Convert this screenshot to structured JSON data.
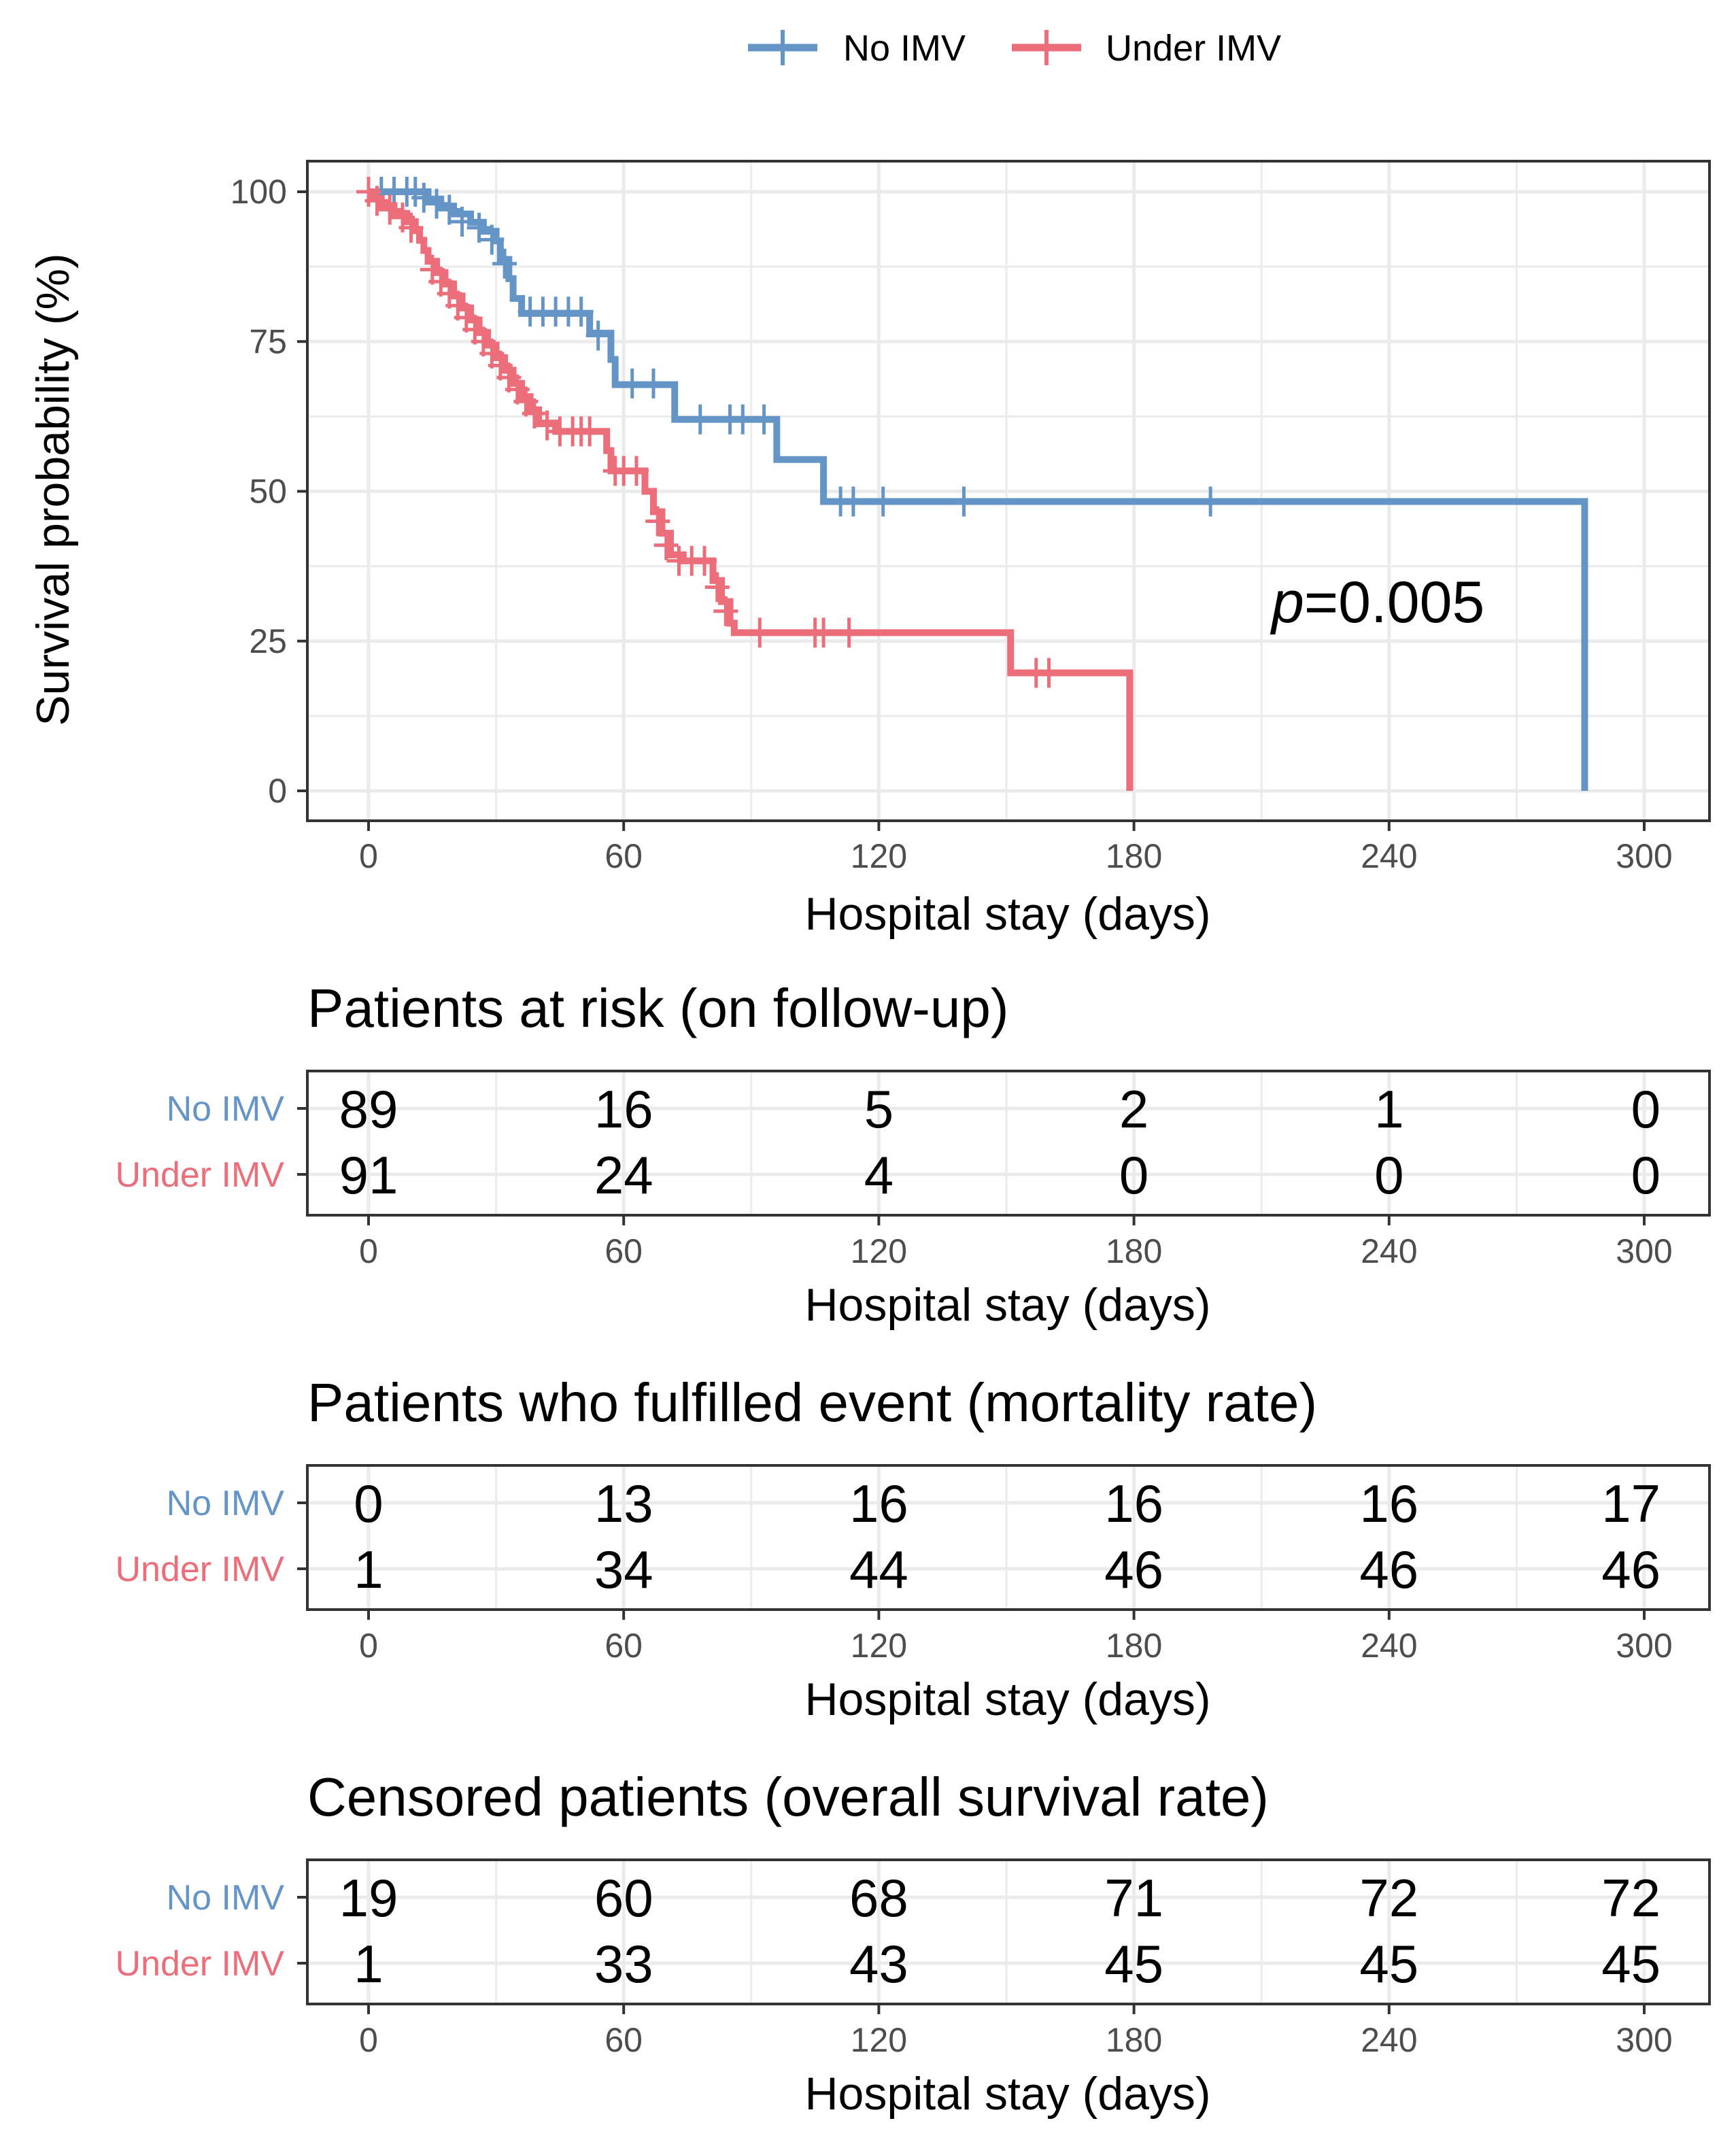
{
  "chart_data": [
    {
      "type": "line",
      "subtype": "kaplan-meier",
      "xlabel": "Hospital stay (days)",
      "ylabel": "Survival probability (%)",
      "xlim": [
        0,
        300
      ],
      "ylim": [
        0,
        100
      ],
      "xticks": [
        "0",
        "60",
        "120",
        "180",
        "240",
        "300"
      ],
      "yticks": [
        "100",
        "75",
        "50",
        "25",
        "0"
      ],
      "grid": true,
      "legend": [
        "No IMV",
        "Under IMV"
      ],
      "legend_position": "top",
      "annotation": {
        "prefix": "p",
        "text": "=0.005"
      },
      "series": [
        {
          "name": "No IMV",
          "color": "#6595c7",
          "steps": [
            [
              0,
              100
            ],
            [
              14,
              98.8
            ],
            [
              17,
              97.6
            ],
            [
              20,
              96.3
            ],
            [
              24,
              94.9
            ],
            [
              27,
              93.4
            ],
            [
              30,
              91.8
            ],
            [
              31,
              88.7
            ],
            [
              33,
              85.5
            ],
            [
              34,
              82.2
            ],
            [
              36,
              79.7
            ],
            [
              52,
              76.4
            ],
            [
              57,
              72.0
            ],
            [
              58,
              67.8
            ],
            [
              71,
              67.8
            ],
            [
              72,
              62.0
            ],
            [
              95,
              62.0
            ],
            [
              96,
              55.3
            ],
            [
              106,
              55.3
            ],
            [
              107,
              48.3
            ],
            [
              286,
              48.3
            ],
            [
              286,
              0
            ]
          ],
          "censored": [
            [
              0,
              100
            ],
            [
              3,
              100
            ],
            [
              6,
              100
            ],
            [
              9,
              100
            ],
            [
              11,
              100
            ],
            [
              13,
              99
            ],
            [
              16,
              98
            ],
            [
              19,
              97
            ],
            [
              22,
              95
            ],
            [
              26,
              94
            ],
            [
              29,
              92
            ],
            [
              32,
              88
            ],
            [
              38,
              80
            ],
            [
              41,
              80
            ],
            [
              44,
              80
            ],
            [
              47,
              80
            ],
            [
              50,
              80
            ],
            [
              54,
              76
            ],
            [
              62,
              68
            ],
            [
              67,
              68
            ],
            [
              78,
              62
            ],
            [
              85,
              62
            ],
            [
              88,
              62
            ],
            [
              93,
              62
            ],
            [
              111,
              48.3
            ],
            [
              114,
              48.3
            ],
            [
              121,
              48.3
            ],
            [
              140,
              48.3
            ],
            [
              198,
              48.3
            ]
          ]
        },
        {
          "name": "Under IMV",
          "color": "#eb6e7a",
          "steps": [
            [
              0,
              100
            ],
            [
              1,
              98.9
            ],
            [
              3,
              97.7
            ],
            [
              6,
              96.4
            ],
            [
              9,
              95.0
            ],
            [
              11,
              93.5
            ],
            [
              12,
              91.9
            ],
            [
              13,
              90.2
            ],
            [
              14,
              88.4
            ],
            [
              16,
              86.5
            ],
            [
              18,
              84.6
            ],
            [
              20,
              82.6
            ],
            [
              22,
              80.6
            ],
            [
              24,
              78.6
            ],
            [
              26,
              76.5
            ],
            [
              28,
              74.4
            ],
            [
              30,
              72.3
            ],
            [
              32,
              70.2
            ],
            [
              34,
              68.0
            ],
            [
              36,
              65.8
            ],
            [
              38,
              63.6
            ],
            [
              40,
              61.4
            ],
            [
              44,
              60.0
            ],
            [
              56,
              56.8
            ],
            [
              57,
              53.4
            ],
            [
              64,
              53.4
            ],
            [
              65,
              50.0
            ],
            [
              67,
              46.6
            ],
            [
              69,
              43.0
            ],
            [
              71,
              39.4
            ],
            [
              74,
              38.4
            ],
            [
              80,
              38.4
            ],
            [
              81,
              35.1
            ],
            [
              83,
              31.6
            ],
            [
              85,
              28.0
            ],
            [
              86,
              26.4
            ],
            [
              150,
              26.4
            ],
            [
              151,
              19.7
            ],
            [
              178,
              19.7
            ],
            [
              179,
              0
            ]
          ],
          "censored": [
            [
              0,
              100
            ],
            [
              2,
              98.5
            ],
            [
              5,
              97
            ],
            [
              8,
              95.7
            ],
            [
              10,
              94
            ],
            [
              15,
              87
            ],
            [
              17,
              85
            ],
            [
              19,
              83
            ],
            [
              21,
              81
            ],
            [
              23,
              79
            ],
            [
              25,
              77
            ],
            [
              27,
              75
            ],
            [
              29,
              73
            ],
            [
              31,
              71
            ],
            [
              33,
              69
            ],
            [
              35,
              67
            ],
            [
              37,
              65
            ],
            [
              39,
              63
            ],
            [
              42,
              61
            ],
            [
              45,
              60
            ],
            [
              48,
              60
            ],
            [
              50,
              60
            ],
            [
              52,
              60
            ],
            [
              58,
              53.4
            ],
            [
              60,
              53.4
            ],
            [
              63,
              53.4
            ],
            [
              68,
              45
            ],
            [
              70,
              41
            ],
            [
              73,
              38.4
            ],
            [
              76,
              38.4
            ],
            [
              79,
              38.4
            ],
            [
              82,
              34
            ],
            [
              84,
              30
            ],
            [
              92,
              26.4
            ],
            [
              105,
              26.4
            ],
            [
              107,
              26.4
            ],
            [
              113,
              26.4
            ],
            [
              157,
              19.7
            ],
            [
              160,
              19.7
            ]
          ]
        }
      ]
    },
    {
      "type": "table",
      "title": "Patients at risk (on follow-up)",
      "xlabel": "Hospital stay (days)",
      "columns": [
        "0",
        "60",
        "120",
        "180",
        "240",
        "300"
      ],
      "rows": [
        {
          "name": "No IMV",
          "values": [
            "89",
            "16",
            "5",
            "2",
            "1",
            "0"
          ]
        },
        {
          "name": "Under IMV",
          "values": [
            "91",
            "24",
            "4",
            "0",
            "0",
            "0"
          ]
        }
      ]
    },
    {
      "type": "table",
      "title": "Patients who fulfilled event (mortality rate)",
      "xlabel": "Hospital stay (days)",
      "columns": [
        "0",
        "60",
        "120",
        "180",
        "240",
        "300"
      ],
      "rows": [
        {
          "name": "No IMV",
          "values": [
            "0",
            "13",
            "16",
            "16",
            "16",
            "17"
          ]
        },
        {
          "name": "Under IMV",
          "values": [
            "1",
            "34",
            "44",
            "46",
            "46",
            "46"
          ]
        }
      ]
    },
    {
      "type": "table",
      "title": "Censored patients (overall survival rate)",
      "xlabel": "Hospital stay (days)",
      "columns": [
        "0",
        "60",
        "120",
        "180",
        "240",
        "300"
      ],
      "rows": [
        {
          "name": "No IMV",
          "values": [
            "19",
            "60",
            "68",
            "71",
            "72",
            "72"
          ]
        },
        {
          "name": "Under IMV",
          "values": [
            "1",
            "33",
            "43",
            "45",
            "45",
            "45"
          ]
        }
      ]
    }
  ]
}
